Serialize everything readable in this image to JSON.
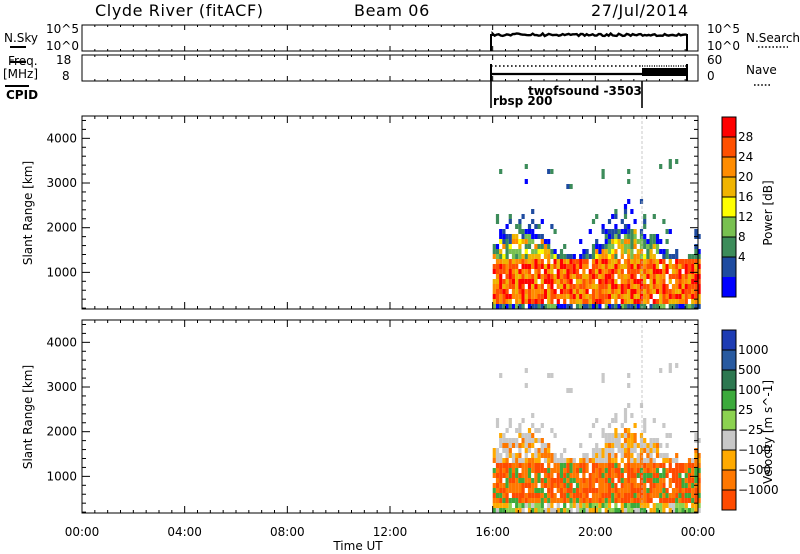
{
  "header": {
    "station": "Clyde River (fitACF)",
    "beam": "Beam 06",
    "date": "27/Jul/2014"
  },
  "panels": {
    "nsky_label": "N.Sky",
    "nsearch_label": "N.Search",
    "nsky_ticks": [
      "10^5",
      "10^0"
    ],
    "nsearch_ticks": [
      "10^5",
      "10^0"
    ],
    "freq_label": "Freq.",
    "freq_unit": "[MHz]",
    "freq_ticks": [
      "18",
      "8"
    ],
    "nave_label": "Nave",
    "nave_ticks": [
      "60",
      "0"
    ],
    "cpid_label": "CPID",
    "cpid_names": [
      "rbsp 200",
      "twofsound -3503"
    ]
  },
  "colors": {
    "power": [
      "#0000ff",
      "#1e4ba0",
      "#3c8c5a",
      "#78c050",
      "#ffff00",
      "#f0b400",
      "#ff8c00",
      "#ff5000",
      "#ff0000"
    ],
    "velocity": [
      "#1e3cb4",
      "#285aa0",
      "#2d7850",
      "#3caa3c",
      "#8cd250",
      "#c8c8c8",
      "#ffaa00",
      "#ff7800",
      "#ff4b00",
      "#ff0000"
    ]
  },
  "chart_data": [
    {
      "type": "heatmap",
      "title": "Power",
      "ylabel": "Slant Range [km]",
      "yticks": [
        1000,
        2000,
        3000,
        4000
      ],
      "ylim": [
        180,
        4500
      ],
      "xlim": [
        "00:00",
        "24:00"
      ],
      "scale_label": "Power [dB]",
      "scale_ticks": [
        4,
        8,
        12,
        16,
        20,
        24,
        28
      ],
      "scale_range": [
        0,
        32
      ],
      "data_window": [
        "16:00",
        "24:00"
      ],
      "cpid_changes": [
        "16:00",
        "22:00"
      ]
    },
    {
      "type": "heatmap",
      "title": "Velocity",
      "ylabel": "Slant Range [km]",
      "yticks": [
        1000,
        2000,
        3000,
        4000
      ],
      "ylim": [
        180,
        4500
      ],
      "xlim": [
        "00:00",
        "24:00"
      ],
      "xlabel": "Time UT",
      "xticks": [
        "00:00",
        "04:00",
        "08:00",
        "12:00",
        "16:00",
        "20:00",
        "00:00"
      ],
      "scale_label": "Velocity [m s^-1]",
      "scale_ticks": [
        "1000",
        "500",
        "100",
        "25",
        "−25",
        "−100",
        "−500",
        "−1000"
      ],
      "data_window": [
        "16:00",
        "24:00"
      ]
    }
  ]
}
